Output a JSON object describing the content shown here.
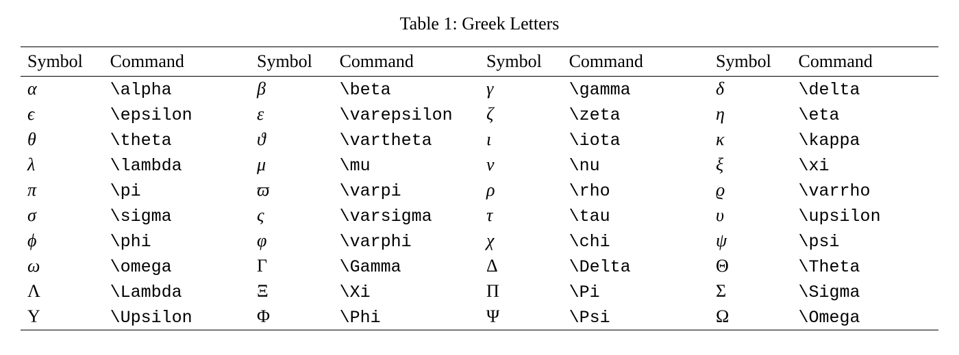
{
  "caption": "Table 1: Greek Letters",
  "headers": [
    "Symbol",
    "Command",
    "Symbol",
    "Command",
    "Symbol",
    "Command",
    "Symbol",
    "Command"
  ],
  "style": {
    "background_color": "#ffffff",
    "text_color": "#000000",
    "rule_color": "#000000",
    "caption_fontsize": 26,
    "header_fontsize": 26,
    "body_fontsize": 26,
    "command_font": "monospace",
    "symbol_font": "serif-italic",
    "top_rule_width": 1.5,
    "mid_rule_width": 1.0,
    "bottom_rule_width": 1.5,
    "columns": 8,
    "column_widths_pct": [
      9,
      16,
      9,
      16,
      9,
      16,
      9,
      16
    ]
  },
  "rows": [
    [
      {
        "symbol": "α",
        "command": "\\alpha",
        "upright": false
      },
      {
        "symbol": "β",
        "command": "\\beta",
        "upright": false
      },
      {
        "symbol": "γ",
        "command": "\\gamma",
        "upright": false
      },
      {
        "symbol": "δ",
        "command": "\\delta",
        "upright": false
      }
    ],
    [
      {
        "symbol": "ϵ",
        "command": "\\epsilon",
        "upright": false
      },
      {
        "symbol": "ε",
        "command": "\\varepsilon",
        "upright": false
      },
      {
        "symbol": "ζ",
        "command": "\\zeta",
        "upright": false
      },
      {
        "symbol": "η",
        "command": "\\eta",
        "upright": false
      }
    ],
    [
      {
        "symbol": "θ",
        "command": "\\theta",
        "upright": false
      },
      {
        "symbol": "ϑ",
        "command": "\\vartheta",
        "upright": false
      },
      {
        "symbol": "ι",
        "command": "\\iota",
        "upright": false
      },
      {
        "symbol": "κ",
        "command": "\\kappa",
        "upright": false
      }
    ],
    [
      {
        "symbol": "λ",
        "command": "\\lambda",
        "upright": false
      },
      {
        "symbol": "μ",
        "command": "\\mu",
        "upright": false
      },
      {
        "symbol": "ν",
        "command": "\\nu",
        "upright": false
      },
      {
        "symbol": "ξ",
        "command": "\\xi",
        "upright": false
      }
    ],
    [
      {
        "symbol": "π",
        "command": "\\pi",
        "upright": false
      },
      {
        "symbol": "ϖ",
        "command": "\\varpi",
        "upright": false
      },
      {
        "symbol": "ρ",
        "command": "\\rho",
        "upright": false
      },
      {
        "symbol": "ϱ",
        "command": "\\varrho",
        "upright": false
      }
    ],
    [
      {
        "symbol": "σ",
        "command": "\\sigma",
        "upright": false
      },
      {
        "symbol": "ς",
        "command": "\\varsigma",
        "upright": false
      },
      {
        "symbol": "τ",
        "command": "\\tau",
        "upright": false
      },
      {
        "symbol": "υ",
        "command": "\\upsilon",
        "upright": false
      }
    ],
    [
      {
        "symbol": "ϕ",
        "command": "\\phi",
        "upright": false
      },
      {
        "symbol": "φ",
        "command": "\\varphi",
        "upright": false
      },
      {
        "symbol": "χ",
        "command": "\\chi",
        "upright": false
      },
      {
        "symbol": "ψ",
        "command": "\\psi",
        "upright": false
      }
    ],
    [
      {
        "symbol": "ω",
        "command": "\\omega",
        "upright": false
      },
      {
        "symbol": "Γ",
        "command": "\\Gamma",
        "upright": true
      },
      {
        "symbol": "Δ",
        "command": "\\Delta",
        "upright": true
      },
      {
        "symbol": "Θ",
        "command": "\\Theta",
        "upright": true
      }
    ],
    [
      {
        "symbol": "Λ",
        "command": "\\Lambda",
        "upright": true
      },
      {
        "symbol": "Ξ",
        "command": "\\Xi",
        "upright": true
      },
      {
        "symbol": "Π",
        "command": "\\Pi",
        "upright": true
      },
      {
        "symbol": "Σ",
        "command": "\\Sigma",
        "upright": true
      }
    ],
    [
      {
        "symbol": "Υ",
        "command": "\\Upsilon",
        "upright": true
      },
      {
        "symbol": "Φ",
        "command": "\\Phi",
        "upright": true
      },
      {
        "symbol": "Ψ",
        "command": "\\Psi",
        "upright": true
      },
      {
        "symbol": "Ω",
        "command": "\\Omega",
        "upright": true
      }
    ]
  ]
}
